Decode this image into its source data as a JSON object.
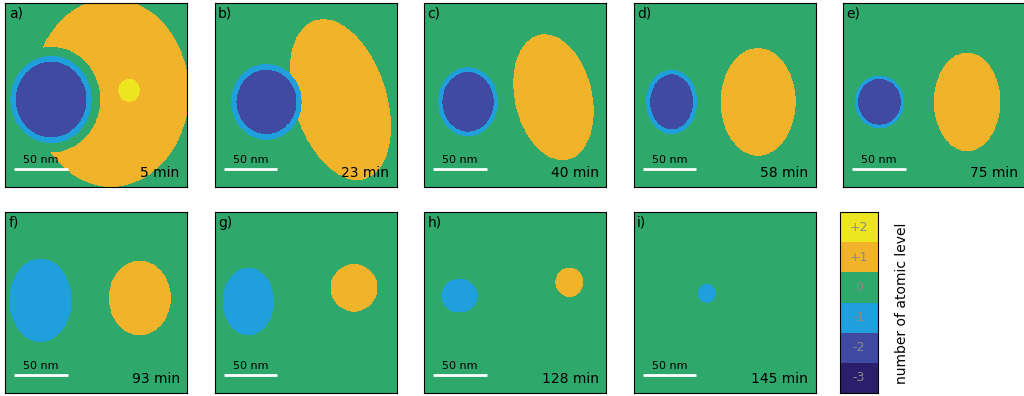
{
  "chart_data": [
    {
      "type": "heatmap",
      "panel_label": "a)",
      "time_label": "5 min",
      "xlim": [
        0,
        170
      ],
      "ylim": [
        0,
        160
      ],
      "tick_labels": false,
      "scale_bar": {
        "length": 50,
        "label": "50 nm"
      },
      "islands": [
        {
          "level": 1,
          "center": [
            99,
            78
          ],
          "radii": [
            73,
            82
          ],
          "angle": 0
        },
        {
          "level": 0,
          "center": [
            43,
            84
          ],
          "radii": [
            46,
            46
          ],
          "angle": 0
        },
        {
          "level": -1,
          "center": [
            43,
            84
          ],
          "radii": [
            38,
            38
          ],
          "angle": 0
        },
        {
          "level": -2,
          "center": [
            43,
            84
          ],
          "radii": [
            33,
            33
          ],
          "angle": 0
        },
        {
          "level": 2,
          "center": [
            116,
            76
          ],
          "radii": [
            10,
            10
          ],
          "angle": 0
        }
      ]
    },
    {
      "type": "heatmap",
      "panel_label": "b)",
      "time_label": "23 min",
      "xlim": [
        0,
        170
      ],
      "ylim": [
        0,
        160
      ],
      "tick_labels": false,
      "scale_bar": {
        "length": 50,
        "label": "50 nm"
      },
      "islands": [
        {
          "level": 1,
          "center": [
            117,
            84
          ],
          "radii": [
            43,
            73
          ],
          "angle": -20
        },
        {
          "level": -1,
          "center": [
            48,
            86
          ],
          "radii": [
            33,
            33
          ],
          "angle": 0
        },
        {
          "level": -2,
          "center": [
            48,
            86
          ],
          "radii": [
            28,
            28
          ],
          "angle": 0
        }
      ]
    },
    {
      "type": "heatmap",
      "panel_label": "c)",
      "time_label": "40 min",
      "xlim": [
        0,
        170
      ],
      "ylim": [
        0,
        160
      ],
      "tick_labels": false,
      "scale_bar": {
        "length": 50,
        "label": "50 nm"
      },
      "islands": [
        {
          "level": 1,
          "center": [
            121,
            82
          ],
          "radii": [
            36,
            56
          ],
          "angle": -15
        },
        {
          "level": -1,
          "center": [
            41,
            86
          ],
          "radii": [
            28,
            30
          ],
          "angle": 0
        },
        {
          "level": -2,
          "center": [
            41,
            86
          ],
          "radii": [
            24,
            26
          ],
          "angle": 0
        }
      ]
    },
    {
      "type": "heatmap",
      "panel_label": "d)",
      "time_label": "58 min",
      "xlim": [
        0,
        170
      ],
      "ylim": [
        0,
        160
      ],
      "tick_labels": false,
      "scale_bar": {
        "length": 50,
        "label": "50 nm"
      },
      "islands": [
        {
          "level": 1,
          "center": [
            116,
            86
          ],
          "radii": [
            35,
            47
          ],
          "angle": 0
        },
        {
          "level": -1,
          "center": [
            35,
            86
          ],
          "radii": [
            24,
            28
          ],
          "angle": 0
        },
        {
          "level": -2,
          "center": [
            35,
            86
          ],
          "radii": [
            20,
            24
          ],
          "angle": 0
        }
      ]
    },
    {
      "type": "heatmap",
      "panel_label": "e)",
      "time_label": "75 min",
      "xlim": [
        0,
        170
      ],
      "ylim": [
        0,
        160
      ],
      "tick_labels": false,
      "scale_bar": {
        "length": 50,
        "label": "50 nm"
      },
      "islands": [
        {
          "level": 1,
          "center": [
            116,
            86
          ],
          "radii": [
            31,
            43
          ],
          "angle": 0
        },
        {
          "level": -1,
          "center": [
            34,
            86
          ],
          "radii": [
            23,
            23
          ],
          "angle": 0
        },
        {
          "level": -2,
          "center": [
            34,
            86
          ],
          "radii": [
            20,
            20
          ],
          "angle": 0
        }
      ]
    },
    {
      "type": "heatmap",
      "panel_label": "f)",
      "time_label": "93 min",
      "xlim": [
        0,
        170
      ],
      "ylim": [
        0,
        160
      ],
      "tick_labels": false,
      "scale_bar": {
        "length": 50,
        "label": "50 nm"
      },
      "islands": [
        {
          "level": 1,
          "center": [
            126,
            76
          ],
          "radii": [
            29,
            33
          ],
          "angle": 0
        },
        {
          "level": -1,
          "center": [
            33,
            78
          ],
          "radii": [
            29,
            37
          ],
          "angle": 0
        }
      ]
    },
    {
      "type": "heatmap",
      "panel_label": "g)",
      "time_label": null,
      "xlim": [
        0,
        170
      ],
      "ylim": [
        0,
        160
      ],
      "tick_labels": false,
      "scale_bar": {
        "length": 50,
        "label": "50 nm"
      },
      "islands": [
        {
          "level": 1,
          "center": [
            130,
            67
          ],
          "radii": [
            22,
            21
          ],
          "angle": 0
        },
        {
          "level": -1,
          "center": [
            31,
            79
          ],
          "radii": [
            24,
            30
          ],
          "angle": 0
        }
      ]
    },
    {
      "type": "heatmap",
      "panel_label": "h)",
      "time_label": "128 min",
      "xlim": [
        0,
        170
      ],
      "ylim": [
        0,
        160
      ],
      "tick_labels": false,
      "scale_bar": {
        "length": 50,
        "label": "50 nm"
      },
      "islands": [
        {
          "level": 1,
          "center": [
            136,
            62
          ],
          "radii": [
            13,
            13
          ],
          "angle": 0
        },
        {
          "level": -1,
          "center": [
            33,
            74
          ],
          "radii": [
            17,
            15
          ],
          "angle": 0
        }
      ]
    },
    {
      "type": "heatmap",
      "panel_label": "i)",
      "time_label": "145 min",
      "xlim": [
        0,
        170
      ],
      "ylim": [
        0,
        160
      ],
      "tick_labels": false,
      "scale_bar": {
        "length": 50,
        "label": "50 nm"
      },
      "islands": [
        {
          "level": -1,
          "center": [
            68,
            72
          ],
          "radii": [
            8.5,
            8.5
          ],
          "angle": 0
        }
      ]
    }
  ],
  "colorbar": {
    "label": "number of atomic level",
    "levels": [
      -3,
      -2,
      -1,
      0,
      1,
      2
    ],
    "colors": [
      "#2b1f6b",
      "#3f4aa0",
      "#1f9fdc",
      "#2fa86b",
      "#f0b32a",
      "#ece51f"
    ],
    "ticks": [
      {
        "value": 2,
        "label": "+2"
      },
      {
        "value": 1,
        "label": "+1"
      },
      {
        "value": 0,
        "label": "0"
      },
      {
        "value": -1,
        "label": "-1"
      },
      {
        "value": -2,
        "label": "-2"
      },
      {
        "value": -3,
        "label": "-3"
      }
    ]
  }
}
